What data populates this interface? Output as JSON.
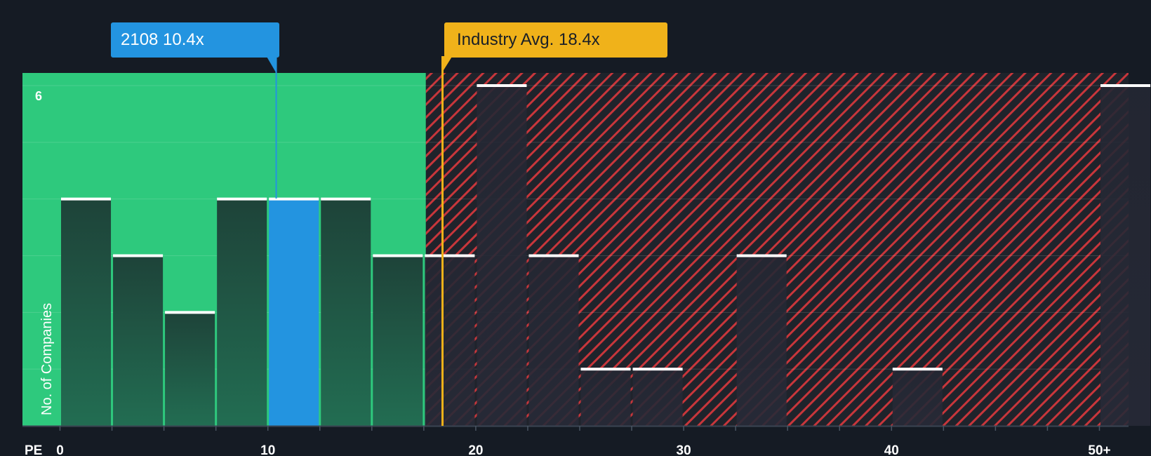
{
  "chart_data": {
    "type": "bar",
    "x_label": "PE",
    "ylabel": "No. of Companies",
    "ylim": [
      0,
      6
    ],
    "y_tick_labels": [
      {
        "value": 6,
        "label": "6"
      }
    ],
    "x_tick_labels": [
      {
        "value": 0,
        "label": "0"
      },
      {
        "value": 10,
        "label": "10"
      },
      {
        "value": 20,
        "label": "20"
      },
      {
        "value": 30,
        "label": "30"
      },
      {
        "value": 40,
        "label": "40"
      },
      {
        "value": 50,
        "label": "50+"
      }
    ],
    "x_minor_ticks": [
      0,
      2.5,
      5,
      7.5,
      10,
      12.5,
      15,
      17.5,
      20,
      22.5,
      25,
      27.5,
      30,
      32.5,
      35,
      37.5,
      40,
      42.5,
      45,
      47.5,
      50
    ],
    "bins": [
      {
        "start": 0,
        "end": 2.5,
        "count": 4
      },
      {
        "start": 2.5,
        "end": 5,
        "count": 3
      },
      {
        "start": 5,
        "end": 7.5,
        "count": 2
      },
      {
        "start": 7.5,
        "end": 10,
        "count": 4
      },
      {
        "start": 10,
        "end": 12.5,
        "count": 4,
        "highlight": true
      },
      {
        "start": 12.5,
        "end": 15,
        "count": 4
      },
      {
        "start": 15,
        "end": 17.5,
        "count": 3
      },
      {
        "start": 17.5,
        "end": 20,
        "count": 3
      },
      {
        "start": 20,
        "end": 22.5,
        "count": 6
      },
      {
        "start": 22.5,
        "end": 25,
        "count": 3
      },
      {
        "start": 25,
        "end": 27.5,
        "count": 1
      },
      {
        "start": 27.5,
        "end": 30,
        "count": 1
      },
      {
        "start": 30,
        "end": 32.5,
        "count": 0
      },
      {
        "start": 32.5,
        "end": 35,
        "count": 3
      },
      {
        "start": 35,
        "end": 37.5,
        "count": 0
      },
      {
        "start": 37.5,
        "end": 40,
        "count": 0
      },
      {
        "start": 40,
        "end": 42.5,
        "count": 1
      },
      {
        "start": 42.5,
        "end": 45,
        "count": 0
      },
      {
        "start": 45,
        "end": 47.5,
        "count": 0
      },
      {
        "start": 47.5,
        "end": 50,
        "count": 0
      },
      {
        "start": 50,
        "end": 52.5,
        "count": 6
      }
    ],
    "fair_value_threshold": 17.6,
    "company": {
      "ticker": "2108",
      "pe": 10.4,
      "label": "2108 10.4x"
    },
    "industry_avg": {
      "pe": 18.4,
      "label": "Industry Avg. 18.4x"
    },
    "colors": {
      "background": "#151b24",
      "undervalued_zone": "#2ec97d",
      "overvalued_stripe": "#c8363b",
      "bar_dark": "#1f4a3e",
      "company_bar": "#2394e0",
      "industry_marker": "#f0b21a",
      "bar_cap": "#ffffff"
    }
  }
}
